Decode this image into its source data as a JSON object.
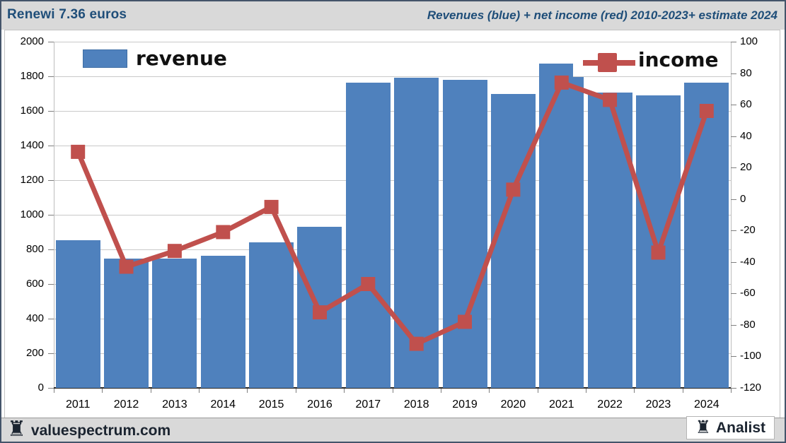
{
  "header": {
    "left_title": "Renewi 7.36 euros",
    "right_title": "Revenues (blue) + net income (red) 2010-2023+ estimate 2024"
  },
  "legend": {
    "revenue_label": "revenue",
    "income_label": "income"
  },
  "footer": {
    "rook_icon": "♜",
    "site_label": "valuespectrum.com",
    "brand_label": "Analist"
  },
  "chart_data": {
    "type": "bar+line combo",
    "categories": [
      "2011",
      "2012",
      "2013",
      "2014",
      "2015",
      "2016",
      "2017",
      "2018",
      "2019",
      "2020",
      "2021",
      "2022",
      "2023",
      "2024"
    ],
    "series": [
      {
        "name": "revenue",
        "type": "bar",
        "axis": "left",
        "color": "#4f81bd",
        "values": [
          855,
          745,
          745,
          765,
          840,
          930,
          1765,
          1790,
          1780,
          1700,
          1875,
          1705,
          1690,
          1765
        ]
      },
      {
        "name": "income",
        "type": "line",
        "axis": "right",
        "color": "#c0504d",
        "values": [
          30,
          -43,
          -33,
          -21,
          -5,
          -72,
          -54,
          -92,
          -78,
          6,
          74,
          63,
          -34,
          56
        ]
      }
    ],
    "secondary_bars": [
      {
        "category": "2021",
        "value": 1795
      }
    ],
    "left_axis": {
      "min": 0,
      "max": 2000,
      "step": 200,
      "tick_labels": [
        "2000",
        "1800",
        "1600",
        "1400",
        "1200",
        "1000",
        "800",
        "600",
        "400",
        "200",
        "0"
      ]
    },
    "right_axis": {
      "min": -120,
      "max": 100,
      "step": 20,
      "tick_labels": [
        "100",
        "80",
        "60",
        "40",
        "20",
        "0",
        "-20",
        "-40",
        "-60",
        "-80",
        "-100",
        "-120"
      ]
    },
    "grid": true,
    "legend_position": "top-inside",
    "colors": {
      "bar": "#4f81bd",
      "line": "#c0504d",
      "grid": "#c9c9c9",
      "axis_text": "#000000",
      "title": "#1f4e79",
      "band_bg": "#d9d9d9"
    }
  }
}
